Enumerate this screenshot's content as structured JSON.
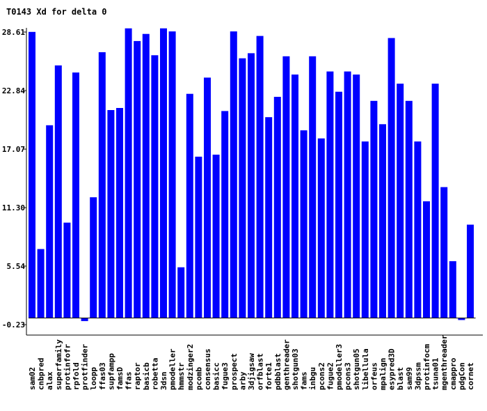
{
  "chart_data": {
    "type": "bar",
    "title": "T0143 Xd for delta 0",
    "xlabel": "",
    "ylabel": "",
    "yticks": [
      "28.61",
      "22.84",
      "17.07",
      "11.30",
      "5.54",
      "-0.23"
    ],
    "ylim": [
      -0.23,
      28.61
    ],
    "grid": false,
    "bar_color": "#0000ff",
    "categories": [
      "sam02",
      "cnbpred",
      "alax",
      "superfamily",
      "protinfofr",
      "rpfold",
      "protfinder",
      "loopp",
      "ffas03",
      "supfampp",
      "famsD",
      "ffas",
      "raptor",
      "basicb",
      "robetta",
      "3dsn",
      "pmodeller",
      "hmmstr",
      "modzinger2",
      "pcomb",
      "consensus",
      "basicc",
      "fugue3",
      "prospect",
      "arby",
      "3djigsaw",
      "orfblast",
      "forte1",
      "pdbblast",
      "genthreader",
      "shotgun03",
      "fams",
      "inbgu",
      "pcons2",
      "fugue2",
      "pmodeller3",
      "pcons3",
      "shotgun05",
      "libellula",
      "orfeus",
      "mpalign",
      "esypred3D",
      "blast",
      "sam99",
      "3dpssm",
      "protinfocm",
      "tsuna01",
      "mgenthreader",
      "cmappro",
      "pdgCon",
      "cornet"
    ],
    "values": [
      28.2,
      6.8,
      19.0,
      24.9,
      9.4,
      24.2,
      -0.3,
      11.9,
      26.2,
      20.5,
      20.7,
      28.55,
      27.3,
      28.0,
      25.9,
      28.55,
      28.25,
      5.0,
      22.1,
      15.9,
      23.7,
      16.1,
      20.4,
      28.25,
      25.6,
      26.1,
      27.8,
      19.8,
      21.8,
      25.8,
      24.0,
      18.5,
      25.8,
      17.7,
      24.3,
      22.3,
      24.3,
      24.0,
      17.4,
      21.4,
      19.1,
      27.6,
      23.1,
      21.4,
      17.4,
      11.5,
      23.1,
      12.9,
      5.6,
      -0.2,
      9.2
    ]
  }
}
